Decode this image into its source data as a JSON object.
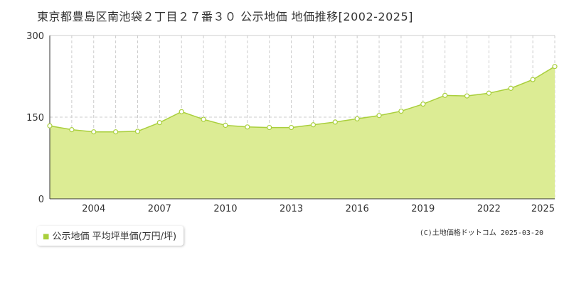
{
  "chart_data": {
    "type": "area",
    "title": "東京都豊島区南池袋２丁目２７番３０ 公示地価 地価推移[2002-2025]",
    "x": [
      2002,
      2003,
      2004,
      2005,
      2006,
      2007,
      2008,
      2009,
      2010,
      2011,
      2012,
      2013,
      2014,
      2015,
      2016,
      2017,
      2018,
      2019,
      2020,
      2021,
      2022,
      2023,
      2024,
      2025
    ],
    "series": [
      {
        "name": "公示地価 平均坪単価(万円/坪)",
        "values": [
          134,
          127,
          123,
          123,
          124,
          140,
          160,
          146,
          135,
          132,
          131,
          131,
          136,
          141,
          147,
          153,
          161,
          174,
          190,
          189,
          194,
          203,
          219,
          243
        ]
      }
    ],
    "ylim": [
      0,
      300
    ],
    "yticks": [
      0,
      150,
      300
    ],
    "xticks": [
      2004,
      2007,
      2010,
      2013,
      2016,
      2019,
      2022,
      2025
    ],
    "xlim": [
      2002,
      2025
    ],
    "grid": true,
    "legend_position": "bottom-left",
    "colors": {
      "fill": "#dcec94",
      "line": "#a9cf3c",
      "point": "#ffffff",
      "grid": "#cccccc",
      "axis": "#333333"
    }
  },
  "copyright": "(C)土地価格ドットコム 2025-03-20"
}
